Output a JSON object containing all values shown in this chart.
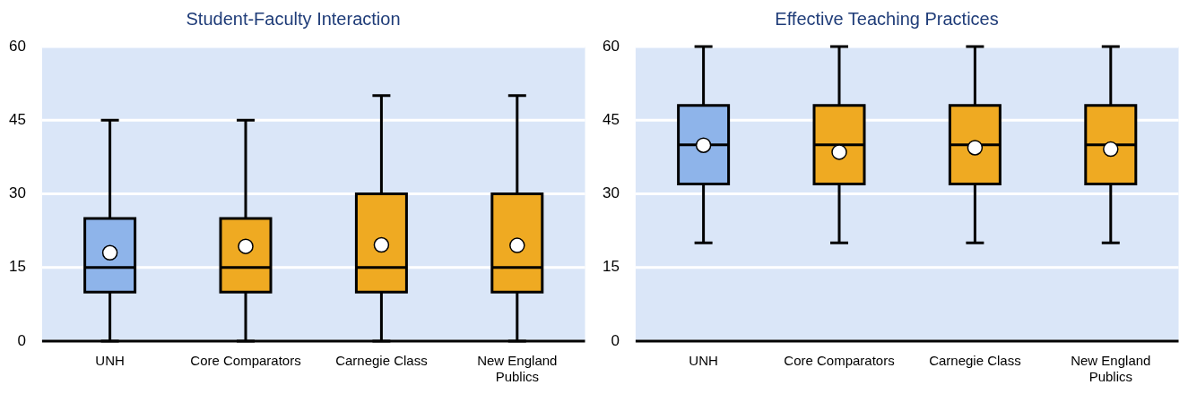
{
  "chart_data": [
    {
      "type": "box",
      "title": "Student-Faculty Interaction",
      "categories": [
        "UNH",
        "Core Comparators",
        "Carnegie Class",
        "New England Publics"
      ],
      "colors": [
        "#8eb4ea",
        "#efaa22",
        "#efaa22",
        "#efaa22"
      ],
      "boxes": [
        {
          "low": 0,
          "q1": 10,
          "median": 15,
          "q3": 25,
          "high": 45,
          "mean": 18.0
        },
        {
          "low": 0,
          "q1": 10,
          "median": 15,
          "q3": 25,
          "high": 45,
          "mean": 19.3
        },
        {
          "low": 0,
          "q1": 10,
          "median": 15,
          "q3": 30,
          "high": 50,
          "mean": 19.6
        },
        {
          "low": 0,
          "q1": 10,
          "median": 15,
          "q3": 30,
          "high": 50,
          "mean": 19.5
        }
      ],
      "ylim": [
        0,
        60
      ],
      "yticks": [
        0,
        15,
        30,
        45,
        60
      ],
      "grid": "y"
    },
    {
      "type": "box",
      "title": "Effective Teaching Practices",
      "categories": [
        "UNH",
        "Core Comparators",
        "Carnegie Class",
        "New England Publics"
      ],
      "colors": [
        "#8eb4ea",
        "#efaa22",
        "#efaa22",
        "#efaa22"
      ],
      "boxes": [
        {
          "low": 20,
          "q1": 32,
          "median": 40,
          "q3": 48,
          "high": 60,
          "mean": 39.9
        },
        {
          "low": 20,
          "q1": 32,
          "median": 40,
          "q3": 48,
          "high": 60,
          "mean": 38.5
        },
        {
          "low": 20,
          "q1": 32,
          "median": 40,
          "q3": 48,
          "high": 60,
          "mean": 39.4
        },
        {
          "low": 20,
          "q1": 32,
          "median": 40,
          "q3": 48,
          "high": 60,
          "mean": 39.1
        }
      ],
      "ylim": [
        0,
        60
      ],
      "yticks": [
        0,
        15,
        30,
        45,
        60
      ],
      "grid": "y"
    }
  ]
}
